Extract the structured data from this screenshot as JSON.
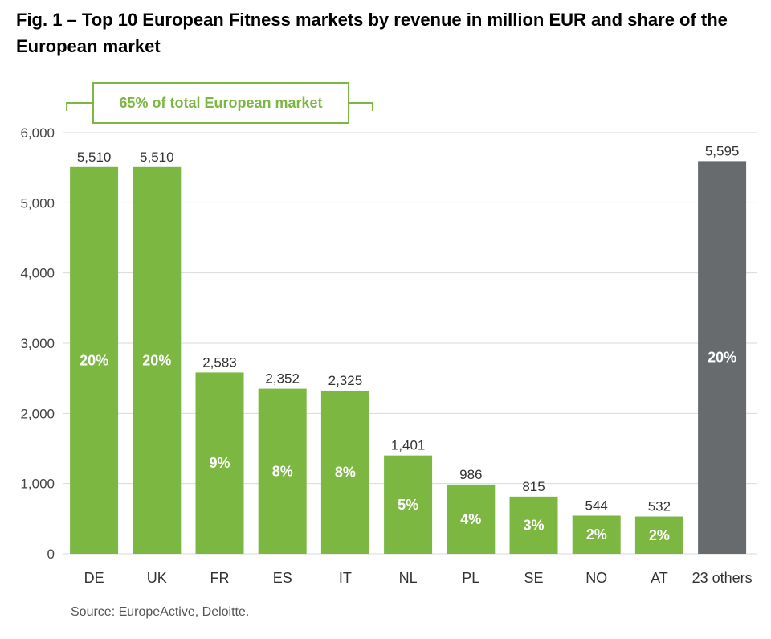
{
  "chart_data": {
    "type": "bar",
    "title": "Fig. 1 – Top 10 European Fitness markets by revenue in million EUR and share of the European market",
    "xlabel": "",
    "ylabel": "",
    "ylim": [
      0,
      6000
    ],
    "yticks": [
      "0",
      "1,000",
      "2,000",
      "3,000",
      "4,000",
      "5,000",
      "6,000"
    ],
    "yticks_values": [
      0,
      1000,
      2000,
      3000,
      4000,
      5000,
      6000
    ],
    "grid": true,
    "categories": [
      "DE",
      "UK",
      "FR",
      "ES",
      "IT",
      "NL",
      "PL",
      "SE",
      "NO",
      "AT",
      "23 others"
    ],
    "values": [
      5510,
      5510,
      2583,
      2352,
      2325,
      1401,
      986,
      815,
      544,
      532,
      5595
    ],
    "value_labels": [
      "5,510",
      "5,510",
      "2,583",
      "2,352",
      "2,325",
      "1,401",
      "986",
      "815",
      "544",
      "532",
      "5,595"
    ],
    "share_labels": [
      "20%",
      "20%",
      "9%",
      "8%",
      "8%",
      "5%",
      "4%",
      "3%",
      "2%",
      "2%",
      "20%"
    ],
    "annotation": "65% of total European market",
    "colors": {
      "top10": "#7cb742",
      "others": "#686b6e",
      "annotation": "#7cb742"
    }
  },
  "source": "Source: EuropeActive, Deloitte."
}
